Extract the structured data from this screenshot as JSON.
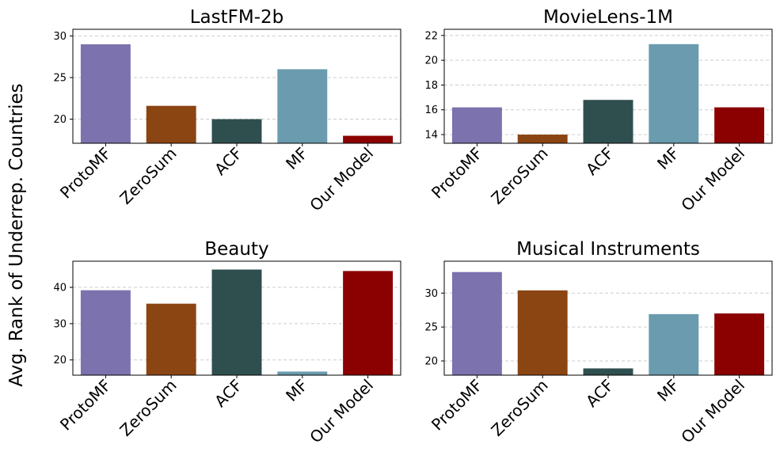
{
  "figure": {
    "ylabel": "Avg. Rank of Underrep. Countries"
  },
  "colors": [
    "#7b72ae",
    "#8b4513",
    "#2f4f4f",
    "#6a9bae",
    "#8b0000"
  ],
  "chart_data": [
    {
      "type": "bar",
      "title": "LastFM-2b",
      "categories": [
        "ProtoMF",
        "ZeroSum",
        "ACF",
        "MF",
        "Our Model"
      ],
      "values": [
        29.0,
        21.6,
        20.0,
        26.0,
        18.0
      ],
      "ylim": [
        17.1,
        30.8
      ],
      "yticks": [
        20,
        25,
        30
      ],
      "grid": true
    },
    {
      "type": "bar",
      "title": "MovieLens-1M",
      "categories": [
        "ProtoMF",
        "ZeroSum",
        "ACF",
        "MF",
        "Our Model"
      ],
      "values": [
        16.2,
        14.0,
        16.8,
        21.3,
        16.2
      ],
      "ylim": [
        13.3,
        22.5
      ],
      "yticks": [
        14,
        16,
        18,
        20,
        22
      ],
      "grid": true
    },
    {
      "type": "bar",
      "title": "Beauty",
      "categories": [
        "ProtoMF",
        "ZeroSum",
        "ACF",
        "MF",
        "Our Model"
      ],
      "values": [
        39.2,
        35.5,
        44.9,
        16.8,
        44.5
      ],
      "ylim": [
        15.8,
        47.2
      ],
      "yticks": [
        20,
        30,
        40
      ],
      "grid": true
    },
    {
      "type": "bar",
      "title": "Musical Instruments",
      "categories": [
        "ProtoMF",
        "ZeroSum",
        "ACF",
        "MF",
        "Our Model"
      ],
      "values": [
        33.1,
        30.4,
        18.9,
        26.9,
        27.0
      ],
      "ylim": [
        17.9,
        34.7
      ],
      "yticks": [
        20,
        25,
        30
      ],
      "grid": true
    }
  ]
}
